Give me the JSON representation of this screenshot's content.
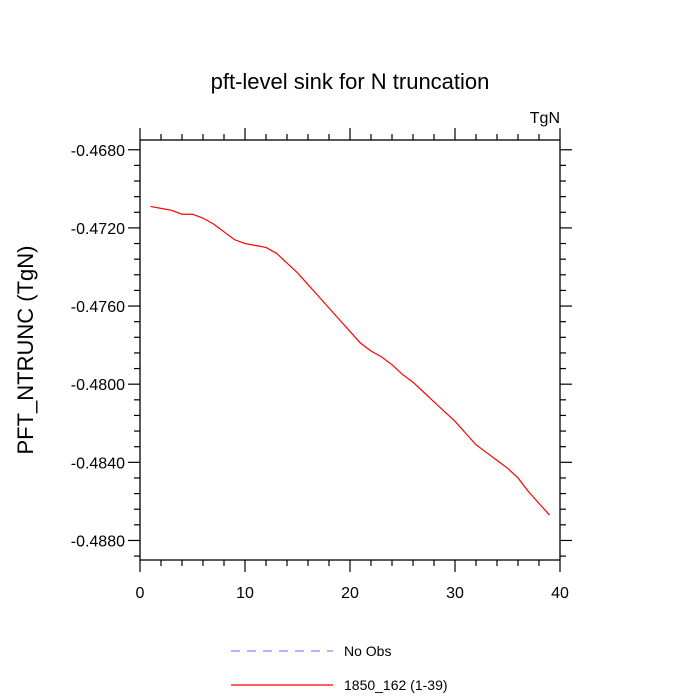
{
  "chart_data": {
    "type": "line",
    "title": "pft-level sink for N truncation",
    "units_label": "TgN",
    "xlabel": "",
    "ylabel": "PFT_NTRUNC  (TgN)",
    "xlim": [
      0,
      40
    ],
    "ylim": [
      -0.489,
      -0.4675
    ],
    "xticks": [
      0,
      10,
      20,
      30,
      40
    ],
    "xtick_labels": [
      "0",
      "10",
      "20",
      "30",
      "40"
    ],
    "yticks": [
      -0.468,
      -0.472,
      -0.476,
      -0.48,
      -0.484,
      -0.488
    ],
    "ytick_labels": [
      "-0.4680",
      "-0.4720",
      "-0.4760",
      "-0.4800",
      "-0.4840",
      "-0.4880"
    ],
    "grid": false,
    "legend_position": "bottom",
    "legend": [
      {
        "label": "No Obs",
        "color": "#8888ff",
        "style": "dashed"
      },
      {
        "label": "1850_162 (1-39)",
        "color": "#ff0000",
        "style": "solid"
      }
    ],
    "series": [
      {
        "name": "1850_162 (1-39)",
        "color": "#ff0000",
        "x": [
          1,
          2,
          3,
          4,
          5,
          6,
          7,
          8,
          9,
          10,
          11,
          12,
          13,
          14,
          15,
          16,
          17,
          18,
          19,
          20,
          21,
          22,
          23,
          24,
          25,
          26,
          27,
          28,
          29,
          30,
          31,
          32,
          33,
          34,
          35,
          36,
          37,
          38,
          39
        ],
        "y": [
          -0.4709,
          -0.471,
          -0.4711,
          -0.4713,
          -0.4713,
          -0.4715,
          -0.4718,
          -0.4722,
          -0.4726,
          -0.4728,
          -0.4729,
          -0.473,
          -0.4733,
          -0.4738,
          -0.4743,
          -0.4749,
          -0.4755,
          -0.4761,
          -0.4767,
          -0.4773,
          -0.4779,
          -0.4783,
          -0.4786,
          -0.479,
          -0.4795,
          -0.4799,
          -0.4804,
          -0.4809,
          -0.4814,
          -0.4819,
          -0.4825,
          -0.4831,
          -0.4835,
          -0.4839,
          -0.4843,
          -0.4848,
          -0.4855,
          -0.4861,
          -0.4867
        ]
      }
    ]
  }
}
